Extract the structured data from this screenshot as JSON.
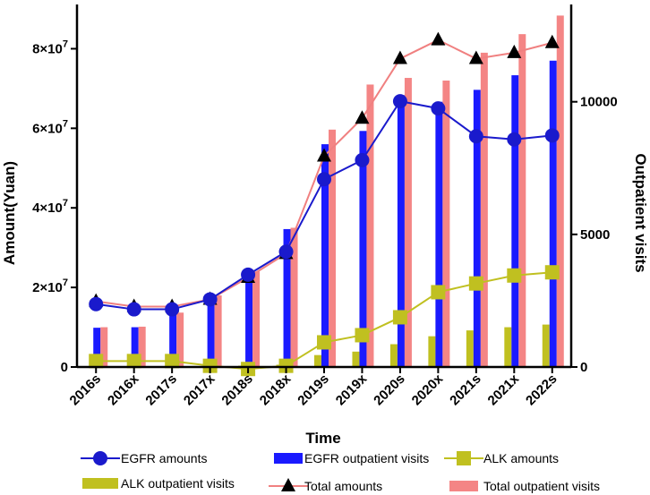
{
  "chart_data": {
    "type": "bar",
    "xlabel": "Time",
    "ylabel": "Amount(Yuan)",
    "y2label": "Outpatient visits",
    "categories": [
      "2016s",
      "2016x",
      "2017s",
      "2017x",
      "2018s",
      "2018x",
      "2019s",
      "2019x",
      "2020s",
      "2020x",
      "2021s",
      "2021x",
      "2022s"
    ],
    "ylim": [
      0,
      90000000
    ],
    "y2lim": [
      0,
      13500
    ],
    "y_ticks": [
      {
        "value": 0,
        "label": "0"
      },
      {
        "value": 20000000,
        "label": "2×10",
        "exp": "7"
      },
      {
        "value": 40000000,
        "label": "4×10",
        "exp": "7"
      },
      {
        "value": 60000000,
        "label": "6×10",
        "exp": "7"
      },
      {
        "value": 80000000,
        "label": "8×10",
        "exp": "7"
      }
    ],
    "y2_ticks": [
      {
        "value": 0,
        "label": "0"
      },
      {
        "value": 5000,
        "label": "5000"
      },
      {
        "value": 10000,
        "label": "10000"
      }
    ],
    "bar_series": [
      {
        "name": "ALK outpatient visits",
        "color": "#c0c020",
        "axis": "right",
        "values": [
          20,
          30,
          25,
          35,
          50,
          85,
          450,
          580,
          860,
          1160,
          1380,
          1500,
          1600
        ]
      },
      {
        "name": "EGFR outpatient visits",
        "color": "#1a1aff",
        "axis": "right",
        "values": [
          1480,
          1500,
          2020,
          2640,
          3500,
          5200,
          8400,
          8900,
          10250,
          10000,
          10450,
          11000,
          11550
        ]
      },
      {
        "name": "Total outpatient visits",
        "color": "#f48585",
        "axis": "right",
        "values": [
          1500,
          1520,
          2050,
          2700,
          3600,
          5250,
          8950,
          10650,
          10900,
          10800,
          11850,
          12550,
          13250
        ]
      }
    ],
    "line_series": [
      {
        "name": "EGFR amounts",
        "color": "#1a1acc",
        "marker": "circle",
        "axis": "left",
        "values": [
          15800000,
          14500000,
          14500000,
          17000000,
          23200000,
          29000000,
          47200000,
          52000000,
          66800000,
          65000000,
          58000000,
          57200000,
          58200000
        ]
      },
      {
        "name": "ALK amounts",
        "color": "#c0c020",
        "marker": "square",
        "axis": "left",
        "values": [
          1500000,
          1500000,
          1500000,
          300000,
          -500000,
          300000,
          6200000,
          8000000,
          12500000,
          18800000,
          21000000,
          23000000,
          23800000
        ]
      },
      {
        "name": "Total amounts",
        "color": "#f08080",
        "marker": "triangle",
        "axis": "left",
        "values": [
          16500000,
          15200000,
          15200000,
          17000000,
          22500000,
          28500000,
          53000000,
          62500000,
          77500000,
          82200000,
          77500000,
          79000000,
          81500000
        ]
      }
    ],
    "legend": {
      "placement": "bottom",
      "entries": [
        {
          "label": "EGFR amounts",
          "kind": "line",
          "marker": "circle",
          "color": "#1a1acc"
        },
        {
          "label": "EGFR outpatient visits",
          "kind": "bar",
          "color": "#1a1aff"
        },
        {
          "label": "ALK amounts",
          "kind": "line",
          "marker": "square",
          "color": "#c0c020"
        },
        {
          "label": "ALK outpatient visits",
          "kind": "bar",
          "color": "#c0c020"
        },
        {
          "label": "Total amounts",
          "kind": "line",
          "marker": "triangle",
          "color": "#f08080"
        },
        {
          "label": "Total outpatient visits",
          "kind": "bar",
          "color": "#f48585"
        }
      ]
    }
  }
}
